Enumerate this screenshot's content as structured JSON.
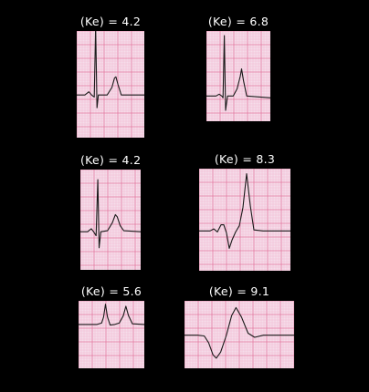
{
  "colors": {
    "background": "#000000",
    "paper": "#f6dde9",
    "grid_minor": "#f0b2cd",
    "grid_major": "#e3779f",
    "trace": "#1a1a1a",
    "label": "#ffffff"
  },
  "panels": [
    {
      "label": "(Ke) = 4.2",
      "waveform": "normal-qrs-small-t"
    },
    {
      "label": "(Ke) = 6.8",
      "waveform": "tall-peaked-t"
    },
    {
      "label": "(Ke) = 4.2",
      "waveform": "normal-qrs-small-t"
    },
    {
      "label": "(Ke) = 8.3",
      "waveform": "widened-qrs-very-tall-t"
    },
    {
      "label": "(Ke) = 5.6",
      "waveform": "low-amplitude-peaked-t"
    },
    {
      "label": "(Ke) = 9.1",
      "waveform": "sine-wave"
    }
  ]
}
